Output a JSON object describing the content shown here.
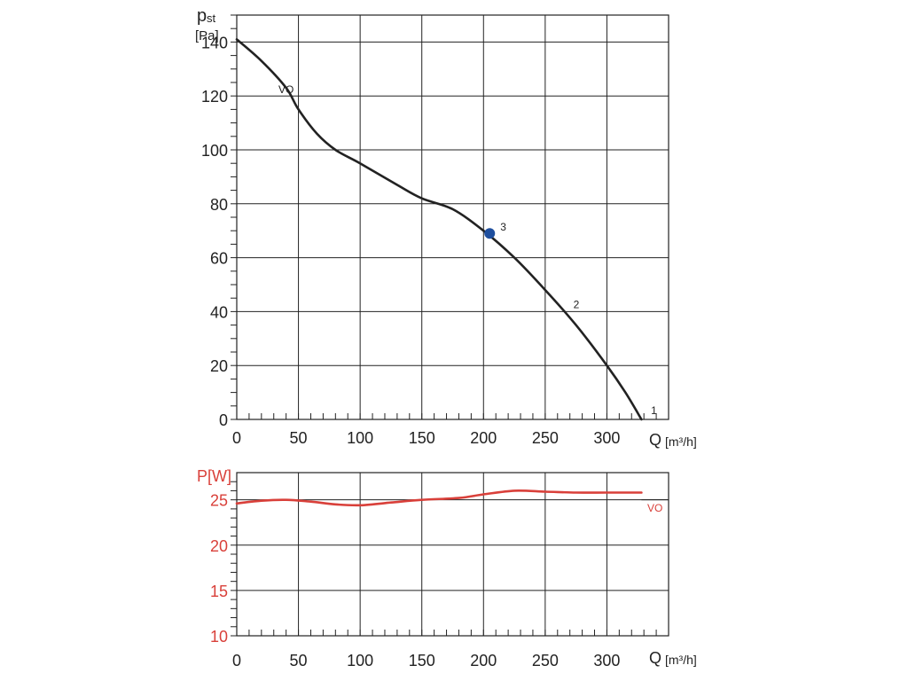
{
  "chart_data": [
    {
      "type": "line",
      "ylabel_symbol": "p",
      "ylabel_sub": "st",
      "ylabel_unit": "[Pa]",
      "xlabel_symbol": "Q",
      "xlabel_unit": "[m³/h]",
      "xlim": [
        0,
        350
      ],
      "ylim": [
        0,
        150
      ],
      "x_ticks": [
        0,
        50,
        100,
        150,
        200,
        250,
        300
      ],
      "y_ticks": [
        0,
        20,
        40,
        60,
        80,
        100,
        120,
        140
      ],
      "grid": true,
      "series": [
        {
          "name": "VO",
          "color": "#222222",
          "x": [
            0,
            20,
            40,
            50,
            65,
            80,
            100,
            130,
            150,
            175,
            200,
            225,
            250,
            275,
            300,
            315,
            328
          ],
          "y": [
            141,
            133,
            123,
            115,
            106,
            100,
            95,
            87,
            82,
            78,
            70,
            60,
            48,
            35,
            20,
            10,
            0
          ]
        }
      ],
      "point_labels": [
        {
          "label": "1",
          "x": 330,
          "y": 0
        },
        {
          "label": "2",
          "x": 270,
          "y": 40
        },
        {
          "label": "3",
          "x": 205,
          "y": 69
        }
      ],
      "marker": {
        "x": 205,
        "y": 69,
        "color": "#1f4f9e"
      }
    },
    {
      "type": "line",
      "ylabel": "P[W]",
      "xlabel_symbol": "Q",
      "xlabel_unit": "[m³/h]",
      "xlim": [
        0,
        350
      ],
      "ylim": [
        10,
        28
      ],
      "x_ticks": [
        0,
        50,
        100,
        150,
        200,
        250,
        300
      ],
      "y_ticks": [
        10,
        15,
        20,
        25
      ],
      "grid": true,
      "series": [
        {
          "name": "VO",
          "color": "#d9403a",
          "x": [
            0,
            20,
            40,
            60,
            80,
            100,
            125,
            150,
            180,
            200,
            225,
            250,
            275,
            300,
            328
          ],
          "y": [
            24.6,
            24.9,
            25.0,
            24.8,
            24.5,
            24.4,
            24.7,
            25.0,
            25.2,
            25.6,
            26.0,
            25.9,
            25.8,
            25.8,
            25.8
          ]
        }
      ],
      "reference_line": 25
    }
  ]
}
